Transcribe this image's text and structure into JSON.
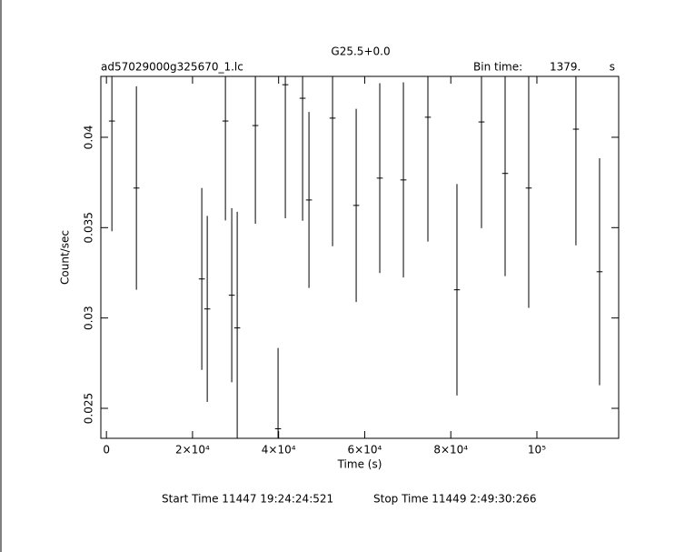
{
  "chart_data": {
    "type": "scatter",
    "title": "G25.5+0.0",
    "subtitle": "ad57029000g325670_1.lc",
    "bin_time_label": "Bin time:",
    "bin_time": "1379.",
    "bin_time_unit": "s",
    "xlabel": "Time (s)",
    "ylabel": "Count/sec",
    "start_time": "Start Time 11447  19:24:24:521",
    "stop_time": "Stop Time 11449   2:49:30:266",
    "x": [
      1266,
      6962,
      22150,
      23420,
      27640,
      29110,
      30380,
      34600,
      39870,
      41560,
      45570,
      47050,
      52530,
      58020,
      63500,
      68990,
      74680,
      81430,
      87130,
      92620,
      98100,
      109070,
      114560
    ],
    "series": [
      {
        "color": "#000000",
        "values": [
          0.0409,
          0.03719,
          0.03216,
          0.0305,
          0.0409,
          0.03126,
          0.02945,
          0.04065,
          0.02387,
          0.04291,
          0.04216,
          0.03653,
          0.04106,
          0.03623,
          0.03774,
          0.03764,
          0.04111,
          0.03156,
          0.04085,
          0.038,
          0.03719,
          0.04045,
          0.03256
        ],
        "yerr": [
          0.0061,
          0.00563,
          0.00503,
          0.00515,
          0.0055,
          0.00482,
          0.00643,
          0.00543,
          0.00447,
          0.00739,
          0.00678,
          0.00487,
          0.00709,
          0.00535,
          0.00525,
          0.0054,
          0.00688,
          0.00585,
          0.00588,
          0.00568,
          0.00663,
          0.00643,
          0.00628
        ]
      }
    ],
    "xlim": [
      -1300,
      119000
    ],
    "ylim": [
      0.02334,
      0.04337
    ],
    "xticks": [
      0,
      {
        "value": 20000,
        "label": "2×10⁴"
      },
      {
        "value": 40000,
        "label": "4×10⁴"
      },
      {
        "value": 60000,
        "label": "6×10⁴"
      },
      {
        "value": 80000,
        "label": "8×10⁴"
      },
      {
        "value": 100000,
        "label": "10⁵"
      }
    ],
    "yticks": [
      0.025,
      0.03,
      0.035,
      0.04
    ]
  }
}
